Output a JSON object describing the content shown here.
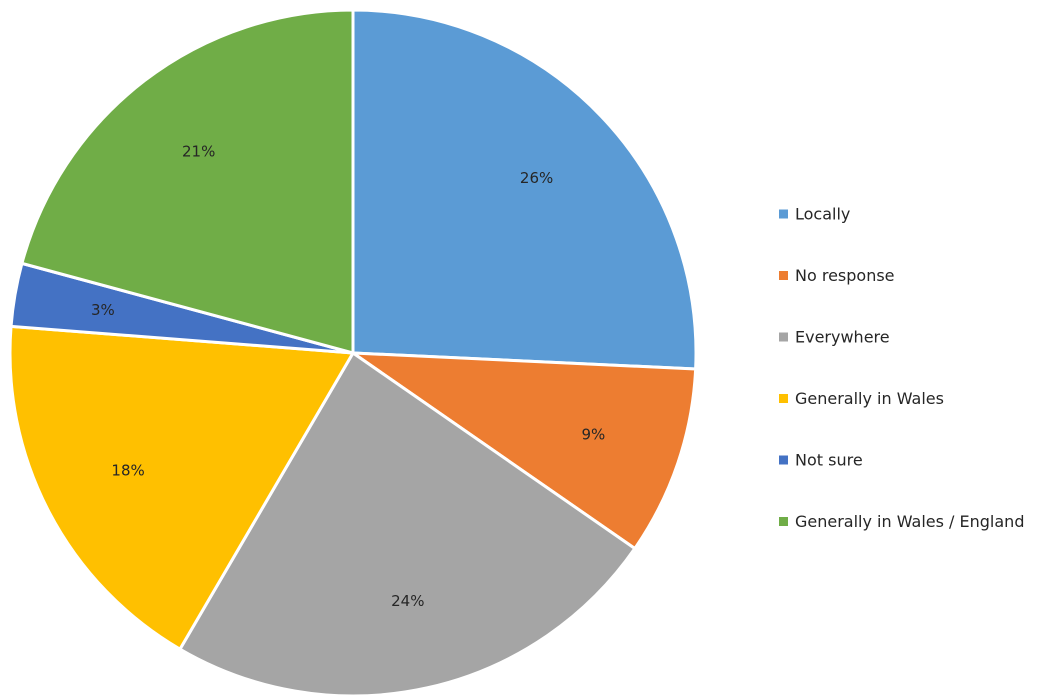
{
  "chart_data": {
    "type": "pie",
    "title": "",
    "start_angle_deg": 0,
    "direction": "clockwise",
    "data_labels_format": "percent",
    "legend_position": "right",
    "slices": [
      {
        "label": "Locally",
        "value": 26,
        "display": "26%",
        "color": "#5B9BD5"
      },
      {
        "label": "No response",
        "value": 9,
        "display": "9%",
        "color": "#ED7D31"
      },
      {
        "label": "Everywhere",
        "value": 24,
        "display": "24%",
        "color": "#A5A5A5"
      },
      {
        "label": "Generally in Wales",
        "value": 18,
        "display": "18%",
        "color": "#FFC000"
      },
      {
        "label": "Not sure",
        "value": 3,
        "display": "3%",
        "color": "#4472C4"
      },
      {
        "label": "Generally in Wales / England",
        "value": 21,
        "display": "21%",
        "color": "#70AD47"
      }
    ]
  }
}
